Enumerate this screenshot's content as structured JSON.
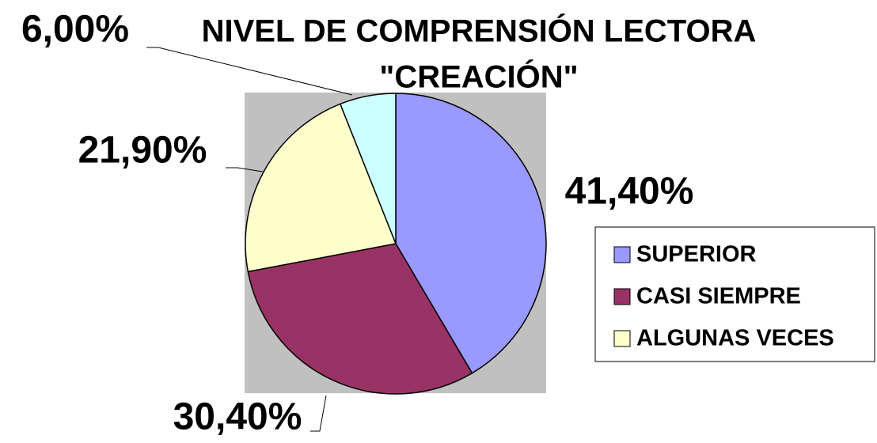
{
  "chart_data": {
    "type": "pie",
    "title": [
      "NIVEL DE COMPRENSIÓN LECTORA",
      "\"CREACIÓN\""
    ],
    "categories": [
      "SUPERIOR",
      "CASI SIEMPRE",
      "ALGUNAS VECES",
      null
    ],
    "values": [
      41.4,
      30.4,
      21.9,
      6.0
    ],
    "value_labels": [
      "41,40%",
      "30,40%",
      "21,90%",
      "6,00%"
    ],
    "colors": [
      "#9999ff",
      "#993366",
      "#ffffcc",
      "#ccffff"
    ],
    "legend": "right"
  }
}
